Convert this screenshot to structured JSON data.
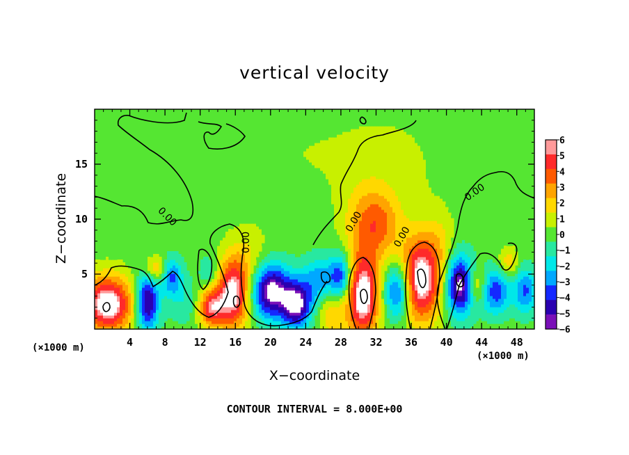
{
  "chart_data": {
    "type": "heatmap",
    "title": "vertical velocity",
    "xlabel": "X−coordinate",
    "ylabel": "Z−coordinate",
    "x_unit_left": "(×1000 m)",
    "x_unit_right": "(×1000 m)",
    "xlim": [
      0,
      50
    ],
    "ylim": [
      0,
      20
    ],
    "x_ticks": [
      4,
      8,
      12,
      16,
      20,
      24,
      28,
      32,
      36,
      40,
      44,
      48
    ],
    "x_tick_labels": [
      "4",
      "8",
      "12",
      "16",
      "20",
      "24",
      "28",
      "32",
      "36",
      "40",
      "44",
      "48"
    ],
    "y_ticks": [
      5,
      10,
      15
    ],
    "y_tick_labels": [
      "5",
      "10",
      "15"
    ],
    "colorbar": {
      "min": -6,
      "max": 6,
      "levels": [
        6,
        5,
        4,
        3,
        2,
        1,
        0,
        -1,
        -2,
        -3,
        -4,
        -5,
        -6
      ],
      "tick_labels": [
        "6",
        "5",
        "4",
        "3",
        "2",
        "1",
        "0",
        "−1",
        "−2",
        "−3",
        "−4",
        "−5",
        "−6"
      ],
      "colors": [
        "#ff9a9a",
        "#ff2a2a",
        "#ff5a00",
        "#ffa400",
        "#ffd800",
        "#c8f000",
        "#55e632",
        "#28e8a0",
        "#00e8e8",
        "#00a8ff",
        "#1428ff",
        "#2a00b0",
        "#7a10b8"
      ]
    },
    "contour_labels": [
      "0.00",
      "0.00",
      "0.00",
      "0.00",
      "0.00",
      "0.00"
    ],
    "cells": [
      {
        "x": 1.5,
        "z": 2.3,
        "w": 6.0,
        "sx": 2.0,
        "sz": 1.8
      },
      {
        "x": 6.0,
        "z": 2.5,
        "w": -5.0,
        "sx": 0.9,
        "sz": 1.9
      },
      {
        "x": 6.8,
        "z": 5.5,
        "w": 2.5,
        "sx": 0.9,
        "sz": 0.8
      },
      {
        "x": 8.8,
        "z": 4.8,
        "w": -3.0,
        "sx": 0.8,
        "sz": 1.2
      },
      {
        "x": 10.5,
        "z": 2.5,
        "w": -1.2,
        "sx": 1.5,
        "sz": 1.5
      },
      {
        "x": 13.2,
        "z": 2.0,
        "w": 4.5,
        "sx": 1.1,
        "sz": 1.3
      },
      {
        "x": 13.0,
        "z": 5.2,
        "w": -1.5,
        "sx": 0.7,
        "sz": 1.0
      },
      {
        "x": 15.8,
        "z": 3.3,
        "w": 5.5,
        "sx": 1.3,
        "sz": 2.3
      },
      {
        "x": 17.8,
        "z": 6.5,
        "w": 1.2,
        "sx": 1.5,
        "sz": 2.0
      },
      {
        "x": 20.0,
        "z": 3.5,
        "w": -5.5,
        "sx": 1.6,
        "sz": 1.8
      },
      {
        "x": 23.0,
        "z": 2.2,
        "w": -5.0,
        "sx": 1.2,
        "sz": 1.5
      },
      {
        "x": 25.5,
        "z": 4.5,
        "w": -2.5,
        "sx": 1.4,
        "sz": 1.5
      },
      {
        "x": 27.0,
        "z": 1.5,
        "w": 2.0,
        "sx": 1.2,
        "sz": 1.5
      },
      {
        "x": 28.0,
        "z": 4.8,
        "w": -3.5,
        "sx": 0.9,
        "sz": 1.5
      },
      {
        "x": 30.5,
        "z": 3.0,
        "w": 6.0,
        "sx": 1.3,
        "sz": 2.6
      },
      {
        "x": 31.0,
        "z": 9.5,
        "w": 2.5,
        "sx": 1.8,
        "sz": 2.5
      },
      {
        "x": 33.0,
        "z": 9.5,
        "w": 1.5,
        "sx": 1.5,
        "sz": 2.0
      },
      {
        "x": 34.5,
        "z": 3.5,
        "w": -4.5,
        "sx": 1.1,
        "sz": 1.8
      },
      {
        "x": 37.0,
        "z": 4.5,
        "w": 6.0,
        "sx": 1.7,
        "sz": 2.7
      },
      {
        "x": 39.2,
        "z": 8.0,
        "w": 1.0,
        "sx": 1.2,
        "sz": 2.0
      },
      {
        "x": 41.5,
        "z": 4.0,
        "w": -5.5,
        "sx": 1.1,
        "sz": 1.9
      },
      {
        "x": 43.5,
        "z": 4.0,
        "w": 2.5,
        "sx": 0.8,
        "sz": 1.2
      },
      {
        "x": 45.5,
        "z": 3.5,
        "w": -3.5,
        "sx": 1.3,
        "sz": 1.5
      },
      {
        "x": 47.0,
        "z": 6.0,
        "w": 2.0,
        "sx": 0.8,
        "sz": 1.0
      },
      {
        "x": 49.0,
        "z": 3.5,
        "w": -3.0,
        "sx": 0.9,
        "sz": 1.5
      },
      {
        "x": 24.0,
        "z": 16.0,
        "w": 0.4,
        "sx": 8.0,
        "sz": 3.5
      },
      {
        "x": 34.0,
        "z": 14.0,
        "w": 0.5,
        "sx": 4.0,
        "sz": 4.0
      }
    ]
  },
  "footer": {
    "contour_interval": "CONTOUR INTERVAL = 8.000E+00"
  }
}
